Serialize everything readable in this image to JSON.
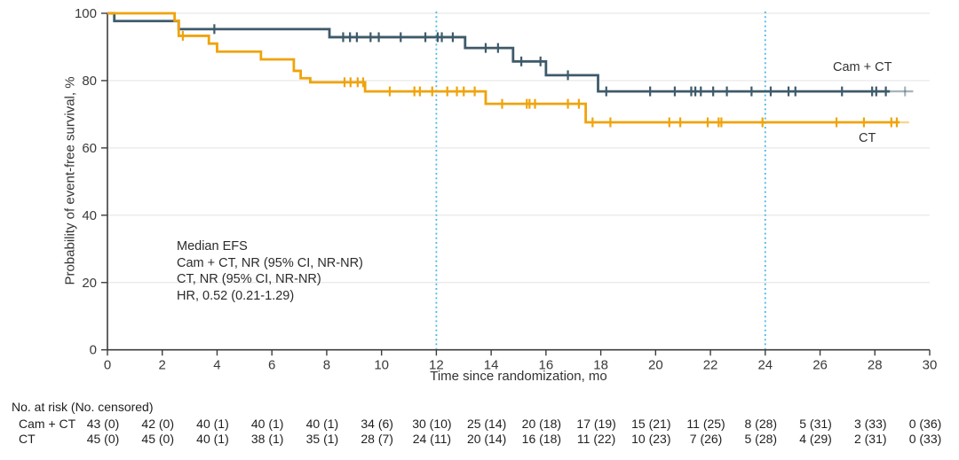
{
  "chart_data": {
    "type": "line",
    "subtype": "kaplan-meier-step",
    "title": "",
    "xlabel": "Time since randomization, mo",
    "ylabel": "Probability of event-free survival, %",
    "xlim": [
      0,
      30
    ],
    "ylim": [
      0,
      100
    ],
    "x_ticks": [
      0,
      2,
      4,
      6,
      8,
      10,
      12,
      14,
      16,
      18,
      20,
      22,
      24,
      26,
      28,
      30
    ],
    "y_ticks": [
      0,
      20,
      40,
      60,
      80,
      100
    ],
    "grid_y": [
      20,
      40,
      60,
      80,
      100
    ],
    "grid_color": "#e7e7e7",
    "axis_color": "#3d3d3d",
    "reference_lines_x": [
      12,
      24
    ],
    "reference_line_color": "#4cb9e8",
    "legend_position": "inline-right",
    "series": [
      {
        "name": "Cam + CT",
        "label": "Cam + CT",
        "color": "#3e5a6a",
        "steps": [
          [
            0,
            100
          ],
          [
            0.25,
            97.7
          ],
          [
            2.6,
            95.3
          ],
          [
            8.1,
            92.9
          ],
          [
            13.05,
            89.7
          ],
          [
            14.8,
            85.7
          ],
          [
            16.0,
            81.6
          ],
          [
            17.9,
            76.8
          ]
        ],
        "end_time": 29.4,
        "fade_from": 28.55,
        "censor_times": [
          3.9,
          8.6,
          8.85,
          9.1,
          9.6,
          9.9,
          10.7,
          11.6,
          12.05,
          12.2,
          12.6,
          13.8,
          14.25,
          15.1,
          15.8,
          16.8,
          18.2,
          19.8,
          20.7,
          21.3,
          21.45,
          21.65,
          22.1,
          22.6,
          23.5,
          24.2,
          24.85,
          25.1,
          26.8,
          27.9,
          28.05,
          28.4,
          29.1
        ]
      },
      {
        "name": "CT",
        "label": "CT",
        "color": "#f0a30b",
        "steps": [
          [
            0,
            100
          ],
          [
            2.45,
            97.8
          ],
          [
            2.6,
            93.3
          ],
          [
            3.7,
            91.0
          ],
          [
            4.0,
            88.6
          ],
          [
            5.6,
            86.3
          ],
          [
            6.8,
            82.9
          ],
          [
            7.05,
            80.7
          ],
          [
            7.4,
            79.5
          ],
          [
            9.4,
            76.8
          ],
          [
            13.8,
            73.1
          ],
          [
            17.45,
            67.6
          ]
        ],
        "end_time": 29.25,
        "fade_from": 28.9,
        "censor_times": [
          2.75,
          8.65,
          8.87,
          9.13,
          9.33,
          10.3,
          11.2,
          11.4,
          11.85,
          12.4,
          12.75,
          13.0,
          13.4,
          14.4,
          15.3,
          15.4,
          15.6,
          16.8,
          17.2,
          17.7,
          18.35,
          20.5,
          20.9,
          21.9,
          22.3,
          22.4,
          23.9,
          26.6,
          27.6,
          28.6,
          28.8
        ]
      }
    ],
    "annotation": [
      "Median EFS",
      "Cam + CT, NR (95% CI, NR-NR)",
      "CT, NR (95% CI, NR-NR)",
      "HR, 0.52 (0.21-1.29)"
    ]
  },
  "risk_table": {
    "title": "No. at risk (No. censored)",
    "times": [
      0,
      2,
      4,
      6,
      8,
      10,
      12,
      14,
      16,
      18,
      20,
      22,
      24,
      26,
      28,
      30
    ],
    "rows": [
      {
        "label": "Cam + CT",
        "values": [
          "43 (0)",
          "42 (0)",
          "40 (1)",
          "40 (1)",
          "40 (1)",
          "34 (6)",
          "30 (10)",
          "25 (14)",
          "20 (18)",
          "17 (19)",
          "15 (21)",
          "11 (25)",
          "8 (28)",
          "5 (31)",
          "3 (33)",
          "0 (36)"
        ]
      },
      {
        "label": "CT",
        "values": [
          "45 (0)",
          "45 (0)",
          "40 (1)",
          "38 (1)",
          "35 (1)",
          "28 (7)",
          "24 (11)",
          "20 (14)",
          "16 (18)",
          "11 (22)",
          "10 (23)",
          "7 (26)",
          "5 (28)",
          "4 (29)",
          "2 (31)",
          "0 (33)"
        ]
      }
    ]
  }
}
